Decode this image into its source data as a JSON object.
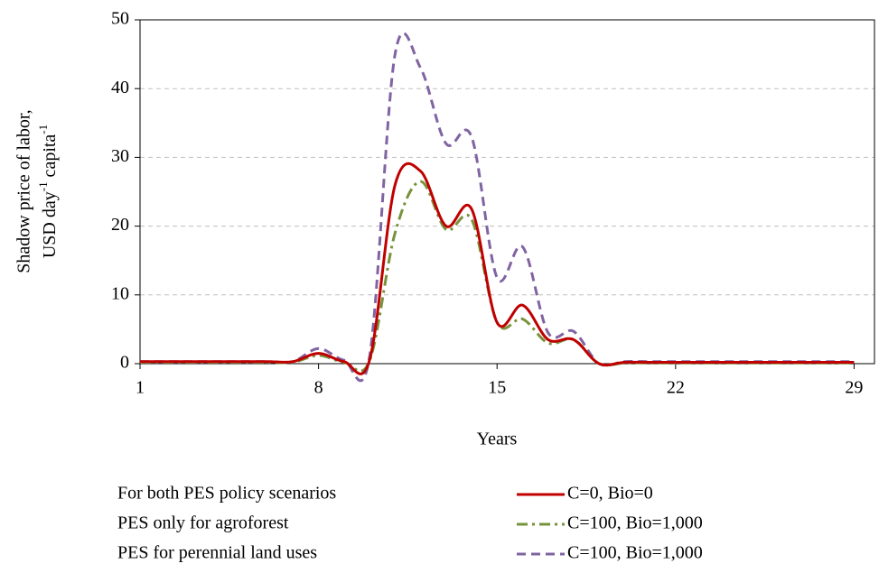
{
  "chart_data": {
    "type": "line",
    "x_label": "Years",
    "y_label": [
      "Shadow price of labor,",
      "USD day",
      "-1",
      " capita",
      "-1"
    ],
    "x": [
      1,
      2,
      3,
      4,
      5,
      6,
      7,
      8,
      9,
      10,
      11,
      12,
      13,
      14,
      15,
      16,
      17,
      18,
      19,
      20,
      21,
      22,
      23,
      24,
      25,
      26,
      27,
      28,
      29
    ],
    "series": [
      {
        "name": "C=0, Bio=0",
        "description": "For both PES policy scenarios",
        "color": "#c00000",
        "dash": "solid",
        "values": [
          0.3,
          0.3,
          0.3,
          0.3,
          0.3,
          0.3,
          0.3,
          1.5,
          0.3,
          0.5,
          26,
          28,
          20,
          22.5,
          6,
          8.5,
          3.5,
          3.5,
          0,
          0.2,
          0.2,
          0.2,
          0.2,
          0.2,
          0.2,
          0.2,
          0.2,
          0.2,
          0.2
        ]
      },
      {
        "name": "C=100, Bio=1,000",
        "description": "PES only for agroforest",
        "color": "#77933c",
        "dash": "dashdot",
        "values": [
          0.2,
          0.2,
          0.2,
          0.2,
          0.2,
          0.2,
          0.2,
          1.2,
          0.2,
          0.4,
          19,
          26.5,
          19.5,
          21,
          6,
          6.5,
          3,
          3.5,
          0,
          0.1,
          0.1,
          0.1,
          0.1,
          0.1,
          0.1,
          0.1,
          0.1,
          0.1,
          0.1
        ]
      },
      {
        "name": "C=100, Bio=1,000",
        "description": "PES for perennial land uses",
        "color": "#8064a2",
        "dash": "dash",
        "values": [
          0.3,
          0.3,
          0.3,
          0.3,
          0.3,
          0.3,
          0.3,
          2.2,
          0.5,
          1,
          45,
          43,
          32,
          33,
          12.5,
          17,
          4.5,
          4.7,
          0,
          0.3,
          0.3,
          0.3,
          0.3,
          0.3,
          0.3,
          0.3,
          0.3,
          0.3,
          0.3
        ]
      }
    ],
    "xlim": [
      1,
      29.8
    ],
    "xticks": [
      1,
      8,
      15,
      22,
      29
    ],
    "ylim": [
      0,
      50
    ],
    "yticks": [
      0,
      10,
      20,
      30,
      40,
      50
    ],
    "grid": true
  }
}
